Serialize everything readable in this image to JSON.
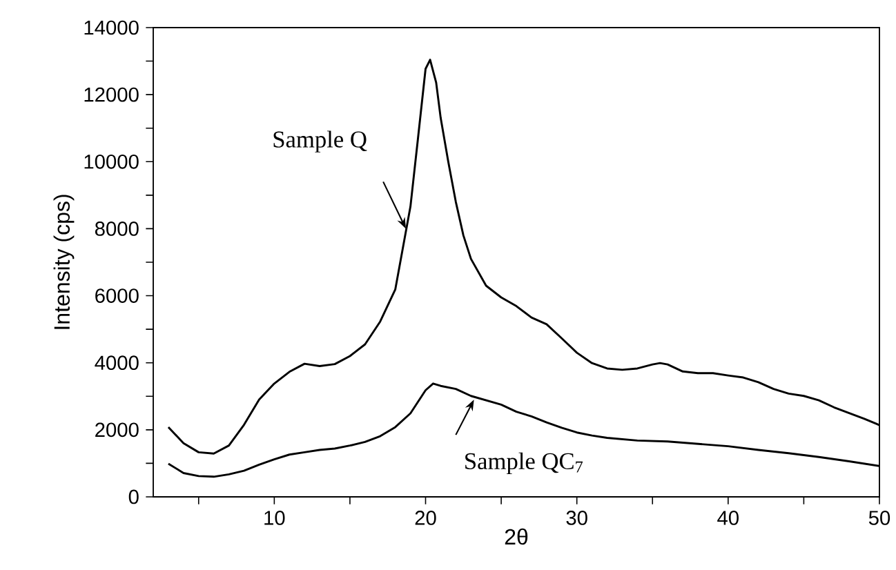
{
  "chart_data": {
    "type": "line",
    "xlabel": "2θ",
    "ylabel": "Intensity (cps)",
    "xlim": [
      2,
      50
    ],
    "ylim": [
      0,
      14000
    ],
    "xticks": [
      {
        "value": 5,
        "label": null
      },
      10,
      {
        "value": 15,
        "label": null
      },
      20,
      {
        "value": 25,
        "label": null
      },
      30,
      {
        "value": 35,
        "label": null
      },
      40,
      {
        "value": 45,
        "label": null
      },
      50
    ],
    "yticks": [
      0,
      {
        "value": 1000,
        "label": null
      },
      2000,
      {
        "value": 3000,
        "label": null
      },
      4000,
      {
        "value": 5000,
        "label": null
      },
      6000,
      {
        "value": 7000,
        "label": null
      },
      8000,
      {
        "value": 9000,
        "label": null
      },
      10000,
      {
        "value": 11000,
        "label": null
      },
      12000,
      {
        "value": 13000,
        "label": null
      },
      14000
    ],
    "grid": false,
    "marker": "none",
    "line_style": "solid",
    "legend": false,
    "annotations": [
      "Sample Q",
      {
        "text": "Sample QC$_{7}$",
        "x": 23.2,
        "y": 2900
      }
    ],
    "series": [
      {
        "color": "#000000",
        "x": [
          3,
          4,
          5,
          6,
          7,
          8,
          9,
          10,
          11,
          12,
          13,
          14,
          15,
          16,
          17,
          18,
          19,
          19.5,
          20,
          20.3,
          20.7,
          21,
          21.5,
          22,
          22.5,
          23,
          24,
          25,
          26,
          27,
          28,
          29,
          30,
          31,
          32,
          33,
          34,
          35,
          35.5,
          36,
          37,
          38,
          39,
          40,
          41,
          42,
          43,
          44,
          45,
          46,
          47,
          48,
          49,
          50
        ],
        "values": [
          2080,
          1600,
          1330,
          1290,
          1530,
          2150,
          2900,
          3380,
          3730,
          3970,
          3900,
          3960,
          4200,
          4550,
          5230,
          6190,
          8660,
          10700,
          12770,
          13040,
          12360,
          11300,
          10000,
          8800,
          7800,
          7100,
          6300,
          5950,
          5690,
          5350,
          5150,
          4730,
          4300,
          3990,
          3830,
          3790,
          3830,
          3950,
          3990,
          3950,
          3740,
          3690,
          3690,
          3620,
          3560,
          3420,
          3220,
          3080,
          3010,
          2880,
          2670,
          2500,
          2330,
          2140
        ]
      },
      {
        "color": "#000000",
        "x": [
          3,
          4,
          5,
          6,
          7,
          8,
          9,
          10,
          11,
          12,
          13,
          14,
          15,
          16,
          17,
          18,
          19,
          20,
          20.5,
          21,
          22,
          23,
          24,
          25,
          26,
          27,
          28,
          29,
          30,
          31,
          32,
          34,
          36,
          38,
          40,
          42,
          44,
          46,
          48,
          50
        ],
        "values": [
          990,
          710,
          620,
          600,
          670,
          780,
          960,
          1120,
          1260,
          1330,
          1400,
          1440,
          1530,
          1640,
          1810,
          2080,
          2490,
          3180,
          3380,
          3310,
          3220,
          3010,
          2880,
          2750,
          2540,
          2400,
          2220,
          2060,
          1920,
          1830,
          1760,
          1680,
          1650,
          1580,
          1510,
          1400,
          1300,
          1190,
          1060,
          920
        ]
      }
    ]
  }
}
